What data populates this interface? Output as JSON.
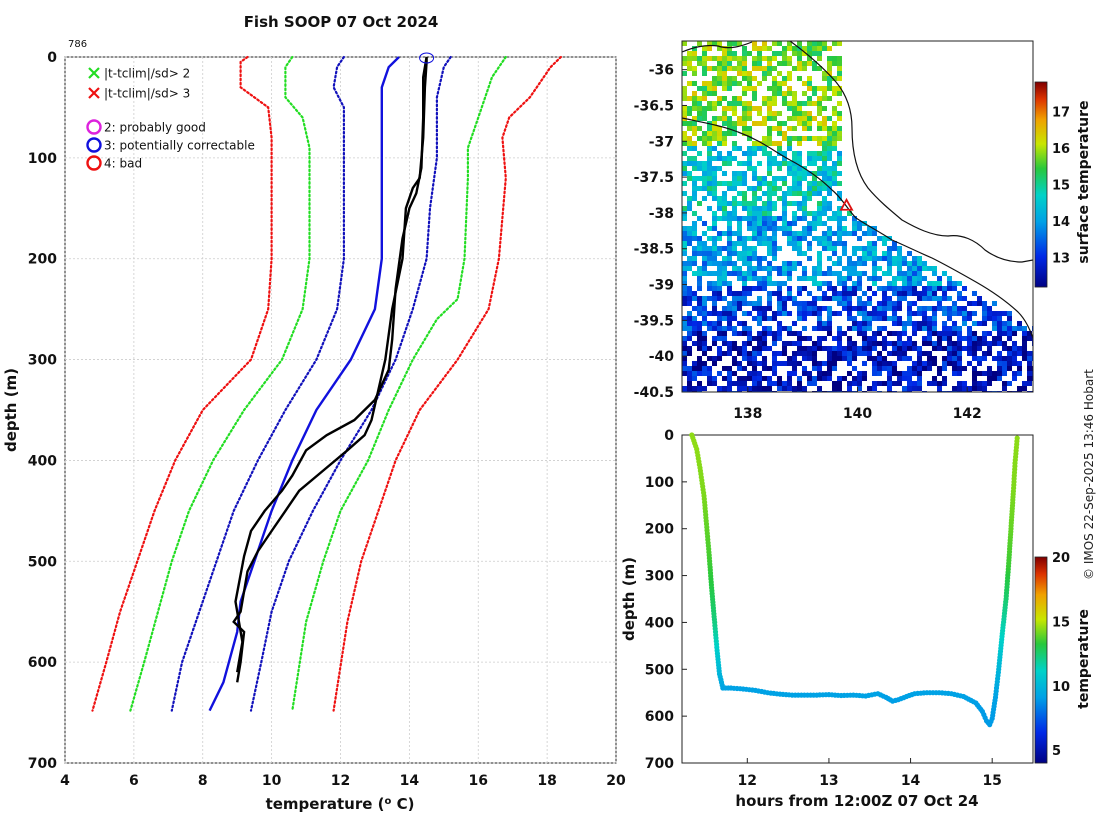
{
  "figure": {
    "title": "Fish SOOP 07 Oct 2024",
    "profile_id": "786",
    "credit": "© IMOS 22-Sep-2025 13:46 Hobart"
  },
  "legend": [
    {
      "marker": "x",
      "color": "#22dd22",
      "label": "|t-tclim|/sd> 2"
    },
    {
      "marker": "x",
      "color": "#ee1111",
      "label": "|t-tclim|/sd> 3"
    },
    {
      "marker": "o",
      "color": "#dd22dd",
      "label": "2: probably good"
    },
    {
      "marker": "o",
      "color": "#1111dd",
      "label": "3: potentially correctable"
    },
    {
      "marker": "o",
      "color": "#ee1111",
      "label": "4: bad"
    }
  ],
  "chart_data": [
    {
      "type": "line",
      "title": "Fish SOOP 07 Oct 2024",
      "xlabel": "temperature (o C)",
      "ylabel": "depth (m)",
      "xlim": [
        4,
        20
      ],
      "ylim": [
        700,
        0
      ],
      "xticks": [
        4,
        6,
        8,
        10,
        12,
        14,
        16,
        18,
        20
      ],
      "yticks": [
        0,
        100,
        200,
        300,
        400,
        500,
        600,
        700
      ],
      "grid": true,
      "series": [
        {
          "name": "clim -3sd",
          "color": "#ee1111",
          "style": "dotted",
          "points": [
            [
              9.3,
              0
            ],
            [
              9.1,
              5
            ],
            [
              9.1,
              30
            ],
            [
              9.9,
              50
            ],
            [
              10.0,
              80
            ],
            [
              10.0,
              200
            ],
            [
              9.9,
              250
            ],
            [
              9.4,
              300
            ],
            [
              8.0,
              350
            ],
            [
              7.2,
              400
            ],
            [
              6.6,
              450
            ],
            [
              6.1,
              500
            ],
            [
              5.6,
              550
            ],
            [
              5.2,
              600
            ],
            [
              4.8,
              648
            ]
          ]
        },
        {
          "name": "clim -2sd",
          "color": "#22dd22",
          "style": "dotted",
          "points": [
            [
              10.6,
              0
            ],
            [
              10.4,
              10
            ],
            [
              10.4,
              40
            ],
            [
              10.9,
              60
            ],
            [
              11.1,
              90
            ],
            [
              11.1,
              200
            ],
            [
              10.9,
              250
            ],
            [
              10.3,
              300
            ],
            [
              9.2,
              350
            ],
            [
              8.3,
              400
            ],
            [
              7.6,
              450
            ],
            [
              7.1,
              500
            ],
            [
              6.7,
              550
            ],
            [
              6.3,
              600
            ],
            [
              5.9,
              648
            ]
          ]
        },
        {
          "name": "clim -1sd",
          "color": "#1111bb",
          "style": "dotted",
          "points": [
            [
              12.1,
              0
            ],
            [
              11.9,
              10
            ],
            [
              11.8,
              30
            ],
            [
              12.1,
              50
            ],
            [
              12.1,
              80
            ],
            [
              12.1,
              200
            ],
            [
              11.9,
              250
            ],
            [
              11.3,
              300
            ],
            [
              10.4,
              350
            ],
            [
              9.6,
              400
            ],
            [
              8.9,
              450
            ],
            [
              8.4,
              500
            ],
            [
              7.9,
              550
            ],
            [
              7.4,
              600
            ],
            [
              7.1,
              648
            ]
          ]
        },
        {
          "name": "clim mean",
          "color": "#1111dd",
          "style": "solid",
          "points": [
            [
              13.7,
              0
            ],
            [
              13.4,
              10
            ],
            [
              13.2,
              30
            ],
            [
              13.2,
              60
            ],
            [
              13.2,
              200
            ],
            [
              13.0,
              250
            ],
            [
              12.3,
              300
            ],
            [
              11.3,
              350
            ],
            [
              10.6,
              400
            ],
            [
              10.0,
              450
            ],
            [
              9.5,
              500
            ],
            [
              9.1,
              540
            ],
            [
              9.0,
              570
            ],
            [
              8.6,
              620
            ],
            [
              8.2,
              648
            ]
          ]
        },
        {
          "name": "clim +1sd",
          "color": "#1111bb",
          "style": "dotted",
          "points": [
            [
              15.2,
              0
            ],
            [
              15.0,
              10
            ],
            [
              14.8,
              40
            ],
            [
              14.8,
              100
            ],
            [
              14.6,
              150
            ],
            [
              14.5,
              200
            ],
            [
              14.1,
              250
            ],
            [
              13.6,
              300
            ],
            [
              12.9,
              350
            ],
            [
              12.0,
              400
            ],
            [
              11.2,
              450
            ],
            [
              10.5,
              500
            ],
            [
              10.0,
              550
            ],
            [
              9.7,
              600
            ],
            [
              9.4,
              648
            ]
          ]
        },
        {
          "name": "clim +2sd",
          "color": "#22dd22",
          "style": "dotted",
          "points": [
            [
              16.8,
              0
            ],
            [
              16.4,
              20
            ],
            [
              16.0,
              60
            ],
            [
              15.7,
              90
            ],
            [
              15.7,
              120
            ],
            [
              15.6,
              200
            ],
            [
              15.4,
              240
            ],
            [
              14.8,
              260
            ],
            [
              14.1,
              300
            ],
            [
              13.4,
              350
            ],
            [
              12.8,
              400
            ],
            [
              12.0,
              450
            ],
            [
              11.5,
              500
            ],
            [
              11.0,
              560
            ],
            [
              10.6,
              648
            ]
          ]
        },
        {
          "name": "clim +3sd",
          "color": "#ee1111",
          "style": "dotted",
          "points": [
            [
              18.4,
              0
            ],
            [
              18.1,
              10
            ],
            [
              17.5,
              40
            ],
            [
              16.9,
              60
            ],
            [
              16.7,
              80
            ],
            [
              16.8,
              120
            ],
            [
              16.6,
              200
            ],
            [
              16.3,
              250
            ],
            [
              15.4,
              300
            ],
            [
              14.3,
              350
            ],
            [
              13.6,
              400
            ],
            [
              13.1,
              450
            ],
            [
              12.6,
              500
            ],
            [
              12.2,
              560
            ],
            [
              11.8,
              648
            ]
          ]
        },
        {
          "name": "profile down",
          "color": "#000000",
          "style": "solid",
          "points": [
            [
              14.5,
              0
            ],
            [
              14.5,
              5
            ],
            [
              14.45,
              30
            ],
            [
              14.4,
              80
            ],
            [
              14.3,
              120
            ],
            [
              14.1,
              130
            ],
            [
              13.9,
              150
            ],
            [
              13.8,
              200
            ],
            [
              13.5,
              250
            ],
            [
              13.3,
              300
            ],
            [
              13.1,
              330
            ],
            [
              12.9,
              360
            ],
            [
              12.7,
              375
            ],
            [
              12.2,
              390
            ],
            [
              11.5,
              410
            ],
            [
              10.8,
              430
            ],
            [
              10.4,
              450
            ],
            [
              10.0,
              470
            ],
            [
              9.6,
              490
            ],
            [
              9.3,
              510
            ],
            [
              9.1,
              550
            ],
            [
              8.9,
              560
            ],
            [
              9.2,
              570
            ],
            [
              9.1,
              600
            ],
            [
              9.0,
              620
            ]
          ]
        },
        {
          "name": "profile up",
          "color": "#000000",
          "style": "solid",
          "points": [
            [
              14.5,
              0
            ],
            [
              14.4,
              20
            ],
            [
              14.4,
              60
            ],
            [
              14.35,
              110
            ],
            [
              14.2,
              135
            ],
            [
              14.0,
              150
            ],
            [
              13.8,
              180
            ],
            [
              13.6,
              230
            ],
            [
              13.5,
              280
            ],
            [
              13.4,
              310
            ],
            [
              13.0,
              340
            ],
            [
              12.4,
              360
            ],
            [
              11.6,
              375
            ],
            [
              11.0,
              390
            ],
            [
              10.6,
              415
            ],
            [
              10.3,
              430
            ],
            [
              9.8,
              450
            ],
            [
              9.4,
              470
            ],
            [
              9.2,
              495
            ],
            [
              8.95,
              540
            ],
            [
              9.15,
              580
            ],
            [
              9.0,
              610
            ]
          ]
        }
      ],
      "flag_marker": {
        "temperature": 14.5,
        "depth": 0,
        "color": "#1111dd"
      }
    },
    {
      "type": "heatmap",
      "xlim": [
        136.8,
        143.2
      ],
      "ylim": [
        -40.5,
        -35.6
      ],
      "xticks": [
        138,
        140,
        142
      ],
      "yticks": [
        -36,
        -36.5,
        -37,
        -37.5,
        -38,
        -38.5,
        -39,
        -39.5,
        -40,
        -40.5
      ],
      "colorbar": {
        "label": "surface temperature",
        "range": [
          12.2,
          17.8
        ],
        "ticks": [
          13,
          14,
          15,
          16,
          17
        ]
      },
      "marker": {
        "lon": 139.8,
        "lat": -37.9,
        "shape": "triangle",
        "color": "#dd1111"
      },
      "bands": [
        {
          "lat": [
            -35.6,
            -37.0
          ],
          "temperature": 15.8
        },
        {
          "lat": [
            -37.0,
            -38.0
          ],
          "temperature": 14.6
        },
        {
          "lat": [
            -38.0,
            -39.0
          ],
          "temperature": 14.0
        },
        {
          "lat": [
            -39.0,
            -39.6
          ],
          "temperature": 13.2
        },
        {
          "lat": [
            -39.6,
            -40.5
          ],
          "temperature": 12.7
        }
      ]
    },
    {
      "type": "scatter",
      "xlabel": "hours from 12:00Z 07 Oct 24",
      "ylabel": "depth (m)",
      "xlim": [
        11.2,
        15.5
      ],
      "ylim": [
        700,
        0
      ],
      "xticks": [
        12,
        13,
        14,
        15
      ],
      "yticks": [
        0,
        100,
        200,
        300,
        400,
        500,
        600,
        700
      ],
      "colorbar": {
        "label": "temperature",
        "range": [
          4,
          20
        ],
        "ticks": [
          5,
          10,
          15,
          20
        ]
      },
      "points": [
        [
          11.32,
          0,
          14.5
        ],
        [
          11.38,
          30,
          14.5
        ],
        [
          11.42,
          70,
          14.4
        ],
        [
          11.47,
          130,
          14.3
        ],
        [
          11.5,
          190,
          14.0
        ],
        [
          11.53,
          250,
          13.7
        ],
        [
          11.56,
          320,
          13.2
        ],
        [
          11.6,
          400,
          12.3
        ],
        [
          11.63,
          460,
          11.0
        ],
        [
          11.66,
          510,
          10.0
        ],
        [
          11.7,
          540,
          9.3
        ],
        [
          11.8,
          540,
          9.2
        ],
        [
          11.95,
          542,
          9.2
        ],
        [
          12.1,
          545,
          9.2
        ],
        [
          12.25,
          550,
          9.2
        ],
        [
          12.4,
          553,
          9.2
        ],
        [
          12.55,
          555,
          9.2
        ],
        [
          12.7,
          555,
          9.2
        ],
        [
          12.85,
          555,
          9.2
        ],
        [
          13.0,
          554,
          9.2
        ],
        [
          13.15,
          556,
          9.2
        ],
        [
          13.3,
          555,
          9.2
        ],
        [
          13.45,
          557,
          9.2
        ],
        [
          13.6,
          552,
          9.2
        ],
        [
          13.7,
          560,
          9.1
        ],
        [
          13.78,
          568,
          9.1
        ],
        [
          13.85,
          565,
          9.1
        ],
        [
          13.95,
          558,
          9.2
        ],
        [
          14.05,
          552,
          9.2
        ],
        [
          14.2,
          550,
          9.2
        ],
        [
          14.35,
          550,
          9.2
        ],
        [
          14.5,
          552,
          9.2
        ],
        [
          14.65,
          558,
          9.2
        ],
        [
          14.8,
          572,
          9.1
        ],
        [
          14.88,
          590,
          9.0
        ],
        [
          14.93,
          610,
          9.0
        ],
        [
          14.97,
          618,
          9.0
        ],
        [
          15.0,
          605,
          9.0
        ],
        [
          15.04,
          560,
          9.2
        ],
        [
          15.08,
          500,
          10.0
        ],
        [
          15.12,
          430,
          11.2
        ],
        [
          15.17,
          350,
          12.5
        ],
        [
          15.2,
          280,
          13.5
        ],
        [
          15.23,
          200,
          14.0
        ],
        [
          15.26,
          120,
          14.3
        ],
        [
          15.28,
          60,
          14.4
        ],
        [
          15.31,
          0,
          14.5
        ]
      ]
    }
  ]
}
